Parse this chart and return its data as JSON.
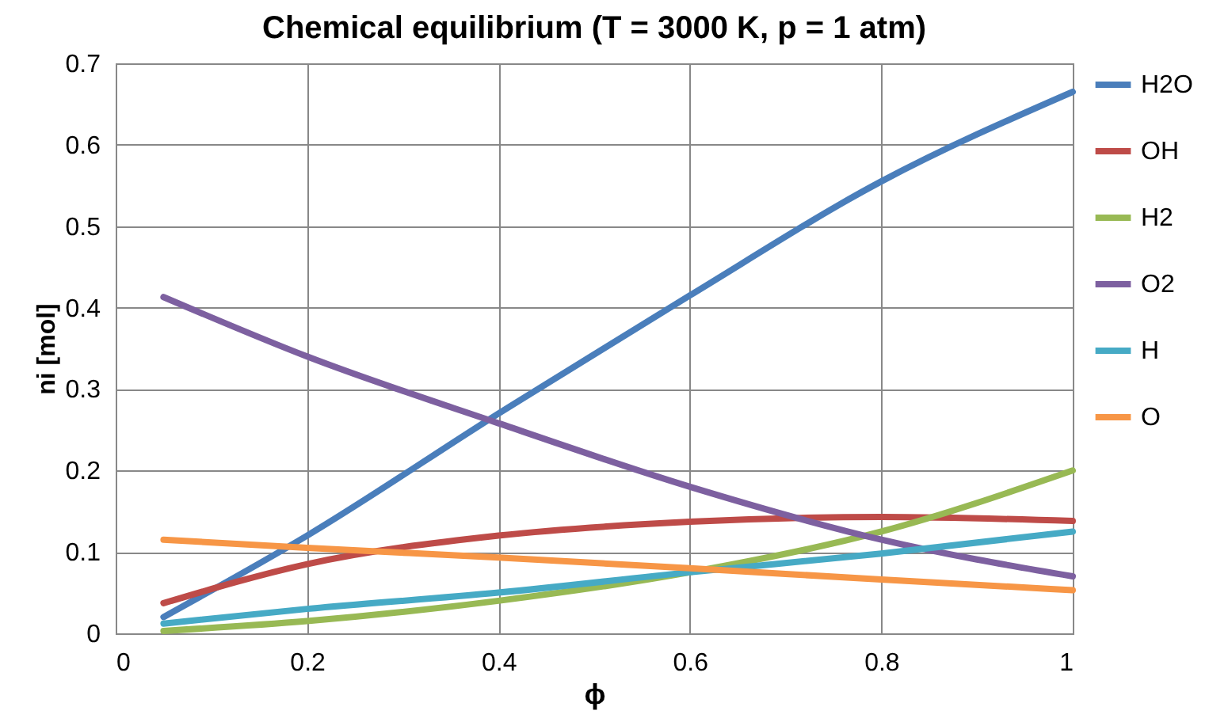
{
  "chart_data": {
    "type": "line",
    "title": "Chemical equilibrium (T = 3000 K, p = 1 atm)",
    "xlabel": "ϕ",
    "ylabel": "ni [mol]",
    "x": [
      0.05,
      0.2,
      0.4,
      0.6,
      0.8,
      1
    ],
    "series": [
      {
        "name": "H2O",
        "color": "#4a7ebb",
        "values": [
          0.02,
          0.12,
          0.27,
          0.415,
          0.555,
          0.665
        ]
      },
      {
        "name": "OH",
        "color": "#be4b48",
        "values": [
          0.037,
          0.085,
          0.12,
          0.137,
          0.143,
          0.138
        ]
      },
      {
        "name": "H2",
        "color": "#98b954",
        "values": [
          0.003,
          0.015,
          0.04,
          0.075,
          0.125,
          0.2
        ]
      },
      {
        "name": "O2",
        "color": "#7d60a0",
        "values": [
          0.413,
          0.34,
          0.258,
          0.18,
          0.115,
          0.07
        ]
      },
      {
        "name": "H",
        "color": "#46aac5",
        "values": [
          0.012,
          0.03,
          0.05,
          0.075,
          0.098,
          0.125
        ]
      },
      {
        "name": "O",
        "color": "#f79646",
        "values": [
          0.115,
          0.105,
          0.093,
          0.08,
          0.066,
          0.053
        ]
      }
    ],
    "xlim": [
      0,
      1
    ],
    "xticks": [
      0,
      0.2,
      0.4,
      0.6,
      0.8,
      1
    ],
    "ylim": [
      0,
      0.7
    ],
    "yticks": [
      0,
      0.1,
      0.2,
      0.3,
      0.4,
      0.5,
      0.6,
      0.7
    ],
    "grid": true,
    "legend": "right",
    "marker": "none",
    "line_style": "solid"
  }
}
